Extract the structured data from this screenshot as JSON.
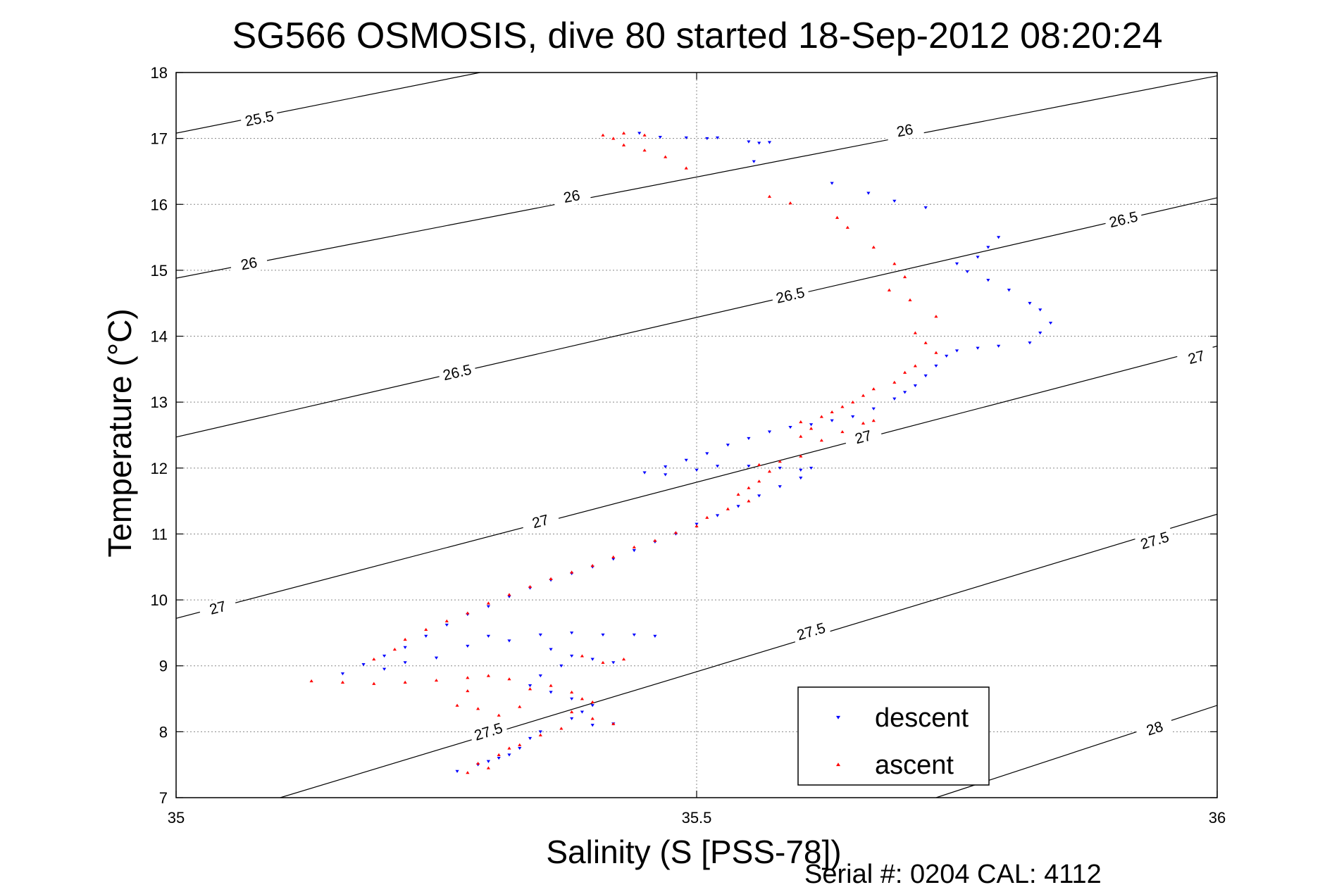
{
  "chart_data": {
    "type": "scatter",
    "title": "SG566 OSMOSIS, dive 80 started 18-Sep-2012 08:20:24",
    "xlabel": "Salinity (S [PSS-78])",
    "ylabel": "Temperature (°C)",
    "footer": "Serial #: 0204  CAL: 4112",
    "xlim": [
      35,
      36
    ],
    "ylim": [
      7,
      18
    ],
    "xticks": [
      35,
      35.5,
      36
    ],
    "xtick_labels": [
      "35",
      "35.5",
      "36"
    ],
    "yticks": [
      7,
      8,
      9,
      10,
      11,
      12,
      13,
      14,
      15,
      16,
      17,
      18
    ],
    "ytick_labels": [
      "7",
      "8",
      "9",
      "10",
      "11",
      "12",
      "13",
      "14",
      "15",
      "16",
      "17",
      "18"
    ],
    "grid": true,
    "legend_position": "bottom-right",
    "contours": [
      {
        "level": "25.5",
        "points": [
          [
            35,
            17.08
          ],
          [
            35.292,
            18.0
          ]
        ],
        "labels": [
          [
            35.08,
            17.3
          ]
        ]
      },
      {
        "level": "26",
        "points": [
          [
            35,
            14.88
          ],
          [
            36,
            17.95
          ]
        ],
        "labels": [
          [
            35.07,
            15.1
          ],
          [
            35.38,
            16.12
          ],
          [
            35.7,
            17.12
          ]
        ]
      },
      {
        "level": "26.5",
        "points": [
          [
            35,
            12.47
          ],
          [
            36,
            16.1
          ]
        ],
        "labels": [
          [
            35.27,
            13.45
          ],
          [
            35.59,
            14.62
          ],
          [
            35.91,
            15.77
          ]
        ]
      },
      {
        "level": "27",
        "points": [
          [
            35,
            9.72
          ],
          [
            36,
            13.85
          ]
        ],
        "labels": [
          [
            35.04,
            9.88
          ],
          [
            35.35,
            11.19
          ],
          [
            35.66,
            12.47
          ],
          [
            35.98,
            13.68
          ]
        ]
      },
      {
        "level": "27.5",
        "points": [
          [
            35.1,
            7.0
          ],
          [
            36,
            11.3
          ]
        ],
        "labels": [
          [
            35.3,
            8.0
          ],
          [
            35.61,
            9.52
          ],
          [
            35.94,
            10.9
          ]
        ]
      },
      {
        "level": "28",
        "points": [
          [
            35.73,
            7.0
          ],
          [
            36,
            8.4
          ]
        ],
        "labels": [
          [
            35.94,
            8.05
          ]
        ]
      }
    ],
    "series": [
      {
        "name": "descent",
        "color": "#0000ff",
        "marker": "triangle-down",
        "points": [
          [
            35.445,
            17.08
          ],
          [
            35.465,
            17.02
          ],
          [
            35.49,
            17.01
          ],
          [
            35.51,
            17.0
          ],
          [
            35.52,
            17.01
          ],
          [
            35.55,
            16.95
          ],
          [
            35.56,
            16.93
          ],
          [
            35.57,
            16.94
          ],
          [
            35.555,
            16.65
          ],
          [
            35.63,
            16.32
          ],
          [
            35.665,
            16.17
          ],
          [
            35.69,
            16.05
          ],
          [
            35.72,
            15.95
          ],
          [
            35.79,
            15.5
          ],
          [
            35.78,
            15.35
          ],
          [
            35.77,
            15.2
          ],
          [
            35.75,
            15.1
          ],
          [
            35.76,
            14.98
          ],
          [
            35.78,
            14.85
          ],
          [
            35.8,
            14.7
          ],
          [
            35.82,
            14.5
          ],
          [
            35.83,
            14.4
          ],
          [
            35.84,
            14.2
          ],
          [
            35.83,
            14.05
          ],
          [
            35.82,
            13.9
          ],
          [
            35.79,
            13.85
          ],
          [
            35.77,
            13.82
          ],
          [
            35.75,
            13.78
          ],
          [
            35.74,
            13.7
          ],
          [
            35.73,
            13.55
          ],
          [
            35.72,
            13.4
          ],
          [
            35.71,
            13.25
          ],
          [
            35.7,
            13.15
          ],
          [
            35.69,
            13.05
          ],
          [
            35.67,
            12.9
          ],
          [
            35.65,
            12.78
          ],
          [
            35.63,
            12.72
          ],
          [
            35.61,
            12.66
          ],
          [
            35.59,
            12.62
          ],
          [
            35.57,
            12.55
          ],
          [
            35.55,
            12.45
          ],
          [
            35.53,
            12.35
          ],
          [
            35.51,
            12.22
          ],
          [
            35.49,
            12.12
          ],
          [
            35.47,
            12.02
          ],
          [
            35.45,
            11.93
          ],
          [
            35.47,
            11.9
          ],
          [
            35.5,
            11.97
          ],
          [
            35.52,
            12.03
          ],
          [
            35.55,
            12.03
          ],
          [
            35.58,
            12.0
          ],
          [
            35.6,
            11.97
          ],
          [
            35.61,
            12.0
          ],
          [
            35.6,
            11.85
          ],
          [
            35.58,
            11.72
          ],
          [
            35.56,
            11.58
          ],
          [
            35.54,
            11.42
          ],
          [
            35.52,
            11.28
          ],
          [
            35.5,
            11.15
          ],
          [
            35.48,
            11.0
          ],
          [
            35.46,
            10.88
          ],
          [
            35.44,
            10.75
          ],
          [
            35.42,
            10.62
          ],
          [
            35.4,
            10.5
          ],
          [
            35.38,
            10.4
          ],
          [
            35.36,
            10.3
          ],
          [
            35.34,
            10.18
          ],
          [
            35.32,
            10.05
          ],
          [
            35.3,
            9.9
          ],
          [
            35.28,
            9.78
          ],
          [
            35.26,
            9.62
          ],
          [
            35.24,
            9.45
          ],
          [
            35.22,
            9.28
          ],
          [
            35.2,
            9.15
          ],
          [
            35.18,
            9.02
          ],
          [
            35.16,
            8.88
          ],
          [
            35.2,
            8.95
          ],
          [
            35.22,
            9.05
          ],
          [
            35.25,
            9.12
          ],
          [
            35.28,
            9.3
          ],
          [
            35.3,
            9.45
          ],
          [
            35.32,
            9.38
          ],
          [
            35.35,
            9.47
          ],
          [
            35.38,
            9.5
          ],
          [
            35.41,
            9.47
          ],
          [
            35.44,
            9.47
          ],
          [
            35.46,
            9.45
          ],
          [
            35.36,
            9.25
          ],
          [
            35.38,
            9.15
          ],
          [
            35.4,
            9.1
          ],
          [
            35.42,
            9.05
          ],
          [
            35.37,
            9.0
          ],
          [
            35.35,
            8.85
          ],
          [
            35.34,
            8.7
          ],
          [
            35.36,
            8.6
          ],
          [
            35.38,
            8.5
          ],
          [
            35.4,
            8.4
          ],
          [
            35.39,
            8.3
          ],
          [
            35.38,
            8.2
          ],
          [
            35.4,
            8.1
          ],
          [
            35.42,
            8.12
          ],
          [
            35.35,
            8.0
          ],
          [
            35.34,
            7.9
          ],
          [
            35.33,
            7.75
          ],
          [
            35.31,
            7.6
          ],
          [
            35.29,
            7.5
          ],
          [
            35.27,
            7.4
          ],
          [
            35.3,
            7.55
          ],
          [
            35.32,
            7.65
          ]
        ]
      },
      {
        "name": "ascent",
        "color": "#ff0000",
        "marker": "triangle-up",
        "points": [
          [
            35.41,
            17.05
          ],
          [
            35.43,
            17.08
          ],
          [
            35.45,
            17.05
          ],
          [
            35.42,
            17.0
          ],
          [
            35.43,
            16.9
          ],
          [
            35.45,
            16.82
          ],
          [
            35.47,
            16.72
          ],
          [
            35.49,
            16.55
          ],
          [
            35.57,
            16.12
          ],
          [
            35.59,
            16.02
          ],
          [
            35.635,
            15.8
          ],
          [
            35.645,
            15.65
          ],
          [
            35.67,
            15.35
          ],
          [
            35.69,
            15.1
          ],
          [
            35.7,
            14.9
          ],
          [
            35.685,
            14.7
          ],
          [
            35.705,
            14.55
          ],
          [
            35.73,
            14.3
          ],
          [
            35.71,
            14.05
          ],
          [
            35.72,
            13.9
          ],
          [
            35.73,
            13.75
          ],
          [
            35.71,
            13.55
          ],
          [
            35.7,
            13.45
          ],
          [
            35.69,
            13.3
          ],
          [
            35.67,
            13.2
          ],
          [
            35.66,
            13.1
          ],
          [
            35.65,
            13.0
          ],
          [
            35.64,
            12.93
          ],
          [
            35.63,
            12.85
          ],
          [
            35.62,
            12.78
          ],
          [
            35.6,
            12.7
          ],
          [
            35.61,
            12.6
          ],
          [
            35.6,
            12.48
          ],
          [
            35.62,
            12.42
          ],
          [
            35.64,
            12.55
          ],
          [
            35.66,
            12.68
          ],
          [
            35.67,
            12.72
          ],
          [
            35.6,
            12.18
          ],
          [
            35.58,
            12.1
          ],
          [
            35.56,
            12.05
          ],
          [
            35.57,
            11.95
          ],
          [
            35.56,
            11.8
          ],
          [
            35.55,
            11.7
          ],
          [
            35.54,
            11.6
          ],
          [
            35.55,
            11.5
          ],
          [
            35.53,
            11.38
          ],
          [
            35.51,
            11.25
          ],
          [
            35.5,
            11.12
          ],
          [
            35.48,
            11.02
          ],
          [
            35.46,
            10.9
          ],
          [
            35.44,
            10.8
          ],
          [
            35.42,
            10.65
          ],
          [
            35.4,
            10.52
          ],
          [
            35.38,
            10.42
          ],
          [
            35.36,
            10.32
          ],
          [
            35.34,
            10.2
          ],
          [
            35.32,
            10.08
          ],
          [
            35.3,
            9.95
          ],
          [
            35.28,
            9.8
          ],
          [
            35.26,
            9.68
          ],
          [
            35.24,
            9.55
          ],
          [
            35.22,
            9.4
          ],
          [
            35.21,
            9.25
          ],
          [
            35.19,
            9.1
          ],
          [
            35.13,
            8.77
          ],
          [
            35.16,
            8.75
          ],
          [
            35.19,
            8.73
          ],
          [
            35.22,
            8.75
          ],
          [
            35.25,
            8.78
          ],
          [
            35.28,
            8.82
          ],
          [
            35.3,
            8.85
          ],
          [
            35.32,
            8.8
          ],
          [
            35.28,
            8.62
          ],
          [
            35.27,
            8.4
          ],
          [
            35.29,
            8.35
          ],
          [
            35.31,
            8.25
          ],
          [
            35.33,
            8.38
          ],
          [
            35.34,
            8.65
          ],
          [
            35.36,
            8.7
          ],
          [
            35.38,
            8.6
          ],
          [
            35.39,
            8.5
          ],
          [
            35.4,
            8.45
          ],
          [
            35.38,
            8.3
          ],
          [
            35.4,
            8.2
          ],
          [
            35.42,
            8.12
          ],
          [
            35.37,
            8.05
          ],
          [
            35.35,
            7.95
          ],
          [
            35.33,
            7.8
          ],
          [
            35.31,
            7.65
          ],
          [
            35.29,
            7.52
          ],
          [
            35.3,
            7.45
          ],
          [
            35.28,
            7.38
          ],
          [
            35.32,
            7.75
          ],
          [
            35.41,
            9.05
          ],
          [
            35.43,
            9.1
          ],
          [
            35.39,
            9.15
          ]
        ]
      }
    ]
  }
}
